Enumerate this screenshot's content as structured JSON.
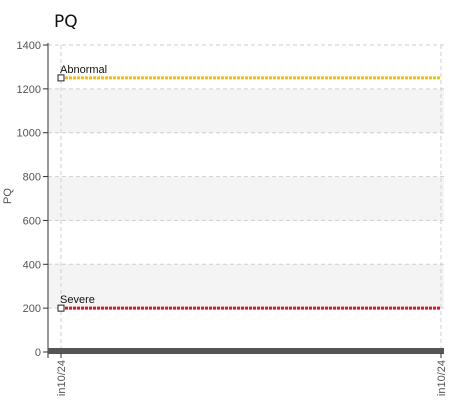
{
  "chart_data": {
    "type": "line",
    "title": "PQ",
    "ylabel": "PQ",
    "xlabel": "",
    "ylim": [
      0,
      1400
    ],
    "yticks": [
      0,
      200,
      400,
      600,
      800,
      1000,
      1200,
      1400
    ],
    "x_ticks": [
      "in10/24",
      "in10/24"
    ],
    "grid": true,
    "threshold_lines": [
      {
        "name": "Abnormal",
        "value": 1250,
        "color": "#f2c200"
      },
      {
        "name": "Severe",
        "value": 200,
        "color": "#e8141c"
      }
    ],
    "baseline": {
      "value": 0,
      "color": "#555555"
    },
    "series": []
  }
}
